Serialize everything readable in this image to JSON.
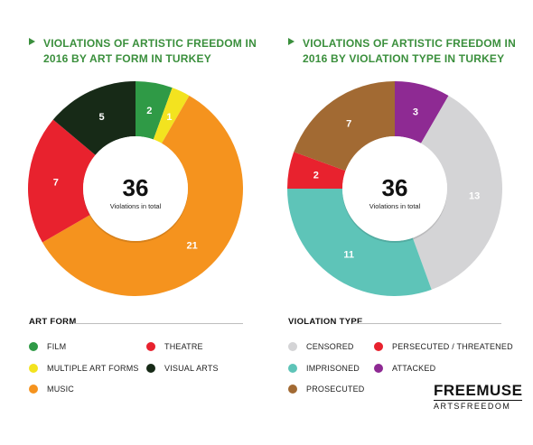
{
  "chart_data": [
    {
      "type": "pie",
      "title": "VIOLATIONS OF ARTISTIC FREEDOM IN 2016 BY ART FORM IN TURKEY",
      "center_value": "36",
      "center_label": "Violations in total",
      "legend_title": "ART FORM",
      "slices": [
        {
          "label": "FILM",
          "value": 2,
          "color": "#2f9a46"
        },
        {
          "label": "MULTIPLE ART FORMS",
          "value": 1,
          "color": "#f3e31f"
        },
        {
          "label": "MUSIC",
          "value": 21,
          "color": "#f5931e"
        },
        {
          "label": "THEATRE",
          "value": 7,
          "color": "#e8222e"
        },
        {
          "label": "VISUAL ARTS",
          "value": 5,
          "color": "#172a17"
        }
      ]
    },
    {
      "type": "pie",
      "title": "VIOLATIONS OF ARTISTIC FREEDOM IN 2016 BY VIOLATION TYPE IN TURKEY",
      "center_value": "36",
      "center_label": "Violations in total",
      "legend_title": "VIOLATION TYPE",
      "slices": [
        {
          "label": "ATTACKED",
          "value": 3,
          "color": "#8e2a93"
        },
        {
          "label": "CENSORED",
          "value": 13,
          "color": "#d4d4d6"
        },
        {
          "label": "IMPRISONED",
          "value": 11,
          "color": "#5ec4b8"
        },
        {
          "label": "PERSECUTED / THREATENED",
          "value": 2,
          "color": "#e8222e"
        },
        {
          "label": "PROSECUTED",
          "value": 7,
          "color": "#a26a33"
        }
      ]
    }
  ],
  "branding": {
    "logo_main": "FREEMUSE",
    "logo_sub": "ARTSFREEDOM"
  }
}
